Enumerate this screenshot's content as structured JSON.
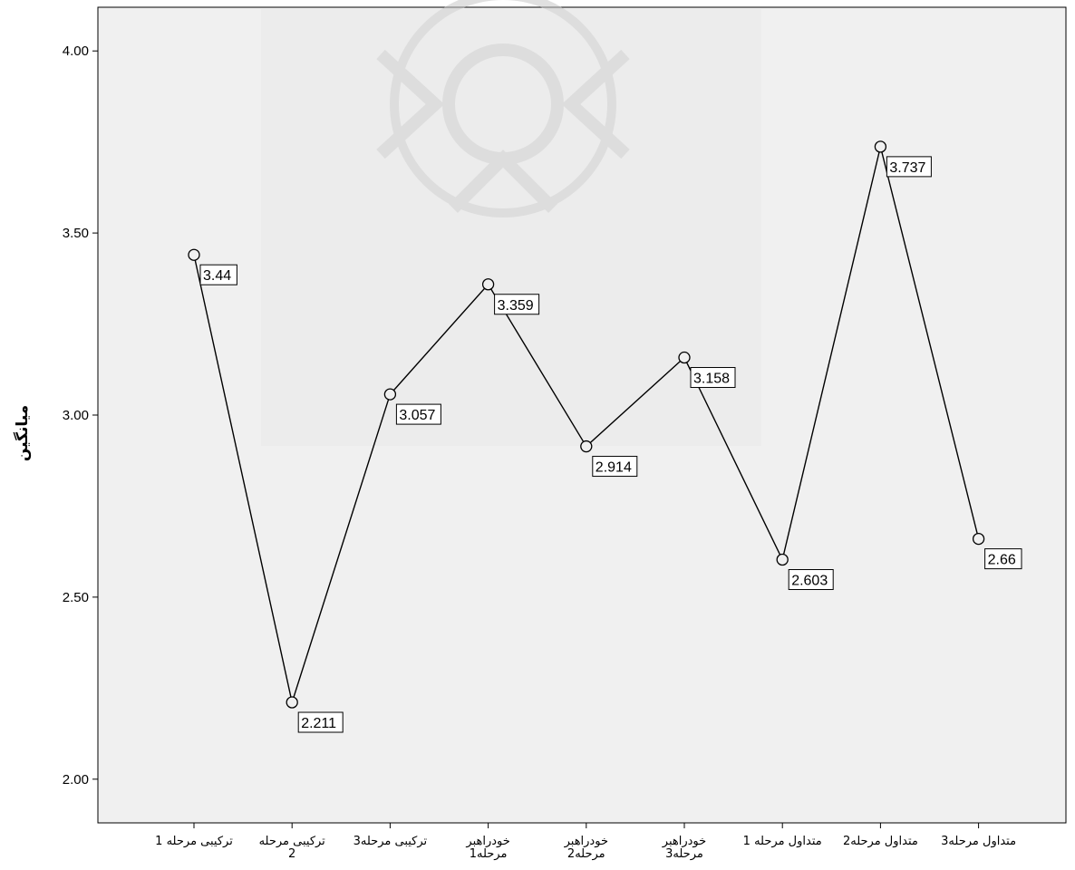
{
  "chart_data": {
    "type": "line",
    "title": "",
    "xlabel": "",
    "ylabel": "میانگین",
    "ylim": [
      1.88,
      4.12
    ],
    "yticks": [
      "2.00",
      "2.50",
      "3.00",
      "3.50",
      "4.00"
    ],
    "grid": false,
    "legend": "none",
    "categories": [
      [
        "ترکیبی مرحله 1"
      ],
      [
        "ترکیبی مرحله",
        "2"
      ],
      [
        "ترکیبی مرحله3"
      ],
      [
        "خودراهبر",
        "مرحله1"
      ],
      [
        "خودراهبر",
        "مرحله2"
      ],
      [
        "خودراهبر",
        "مرحله3"
      ],
      [
        "متداول مرحله 1"
      ],
      [
        "متداول مرحله2"
      ],
      [
        "متداول مرحله3"
      ]
    ],
    "values": [
      3.44,
      2.211,
      3.057,
      3.359,
      2.914,
      3.158,
      2.603,
      3.737,
      2.66
    ],
    "data_labels": [
      "3.44",
      "2.211",
      "3.057",
      "3.359",
      "2.914",
      "3.158",
      "2.603",
      "3.737",
      "2.66"
    ],
    "colors": {
      "plot_background": "#f0f0f0",
      "line": "#000000",
      "marker_fill": "#f0f0f0",
      "label_box": "#ffffff",
      "watermark": "#c8c8c8"
    }
  }
}
